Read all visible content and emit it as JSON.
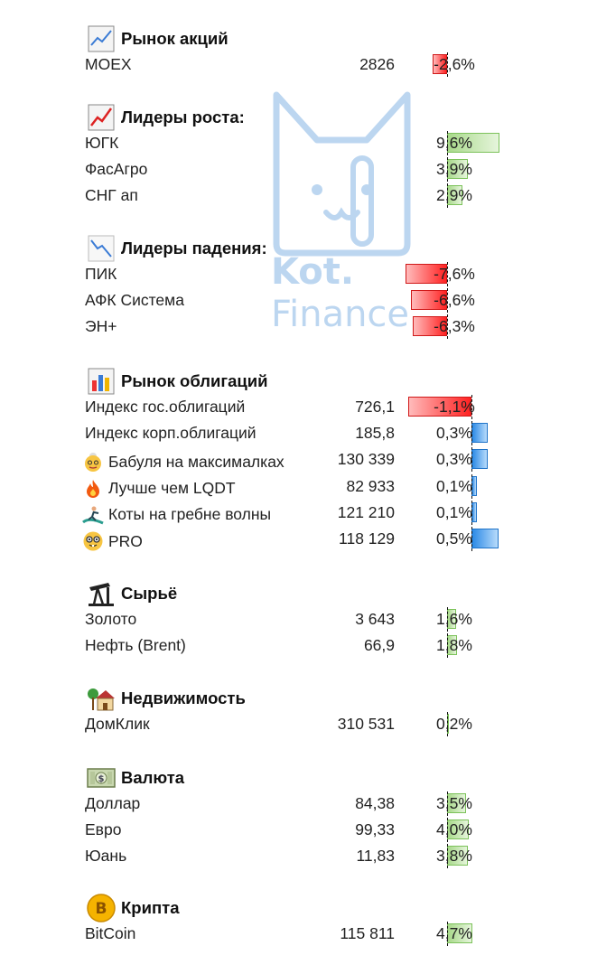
{
  "watermark": {
    "line1": "Kot.",
    "line2": "Finance"
  },
  "sections": [
    {
      "title": "Рынок акций",
      "icon": "chart-up-icon",
      "rows": [
        {
          "name": "MOEX",
          "value": "2826",
          "pct": "-2,6%",
          "change": -2.6
        }
      ]
    },
    {
      "title": "Лидеры роста:",
      "icon": "chart-up-red-icon",
      "rows": [
        {
          "name": "ЮГК",
          "value": "",
          "pct": "9,6%",
          "change": 9.6
        },
        {
          "name": "ФасАгро",
          "value": "",
          "pct": "3,9%",
          "change": 3.9
        },
        {
          "name": "СНГ ап",
          "value": "",
          "pct": "2,9%",
          "change": 2.9
        }
      ]
    },
    {
      "title": "Лидеры падения:",
      "icon": "chart-down-icon",
      "rows": [
        {
          "name": "ПИК",
          "value": "",
          "pct": "-7,6%",
          "change": -7.6
        },
        {
          "name": "АФК Система",
          "value": "",
          "pct": "-6,6%",
          "change": -6.6
        },
        {
          "name": "ЭН+",
          "value": "",
          "pct": "-6,3%",
          "change": -6.3
        }
      ]
    },
    {
      "title": "Рынок облигаций",
      "icon": "bar-chart-icon",
      "rows": [
        {
          "name": "Индекс гос.облигаций",
          "value": "726,1",
          "pct": "-1,1%",
          "change": -1.1,
          "kind": "gov"
        },
        {
          "name": "Индекс корп.облигаций",
          "value": "185,8",
          "pct": "0,3%",
          "change": 0.3,
          "kind": "bond"
        },
        {
          "name": "Бабуля на максималках",
          "value": "130 339",
          "pct": "0,3%",
          "change": 0.3,
          "kind": "bond",
          "emoji": "granny-icon"
        },
        {
          "name": "Лучше чем LQDT",
          "value": "82 933",
          "pct": "0,1%",
          "change": 0.1,
          "kind": "bond",
          "emoji": "fire-icon"
        },
        {
          "name": "Коты на гребне волны",
          "value": "121 210",
          "pct": "0,1%",
          "change": 0.1,
          "kind": "bond",
          "emoji": "surfer-icon"
        },
        {
          "name": "PRO",
          "value": "118 129",
          "pct": "0,5%",
          "change": 0.5,
          "kind": "bond",
          "emoji": "nerd-face-icon"
        }
      ]
    },
    {
      "title": "Сырьё",
      "icon": "oil-pump-icon",
      "rows": [
        {
          "name": "Золото",
          "value": "3 643",
          "pct": "1,6%",
          "change": 1.6
        },
        {
          "name": "Нефть (Brent)",
          "value": "66,9",
          "pct": "1,8%",
          "change": 1.8
        }
      ]
    },
    {
      "title": "Недвижимость",
      "icon": "house-icon",
      "rows": [
        {
          "name": "ДомКлик",
          "value": "310 531",
          "pct": "0,2%",
          "change": 0.2
        }
      ]
    },
    {
      "title": "Валюта",
      "icon": "banknote-icon",
      "rows": [
        {
          "name": "Доллар",
          "value": "84,38",
          "pct": "3,5%",
          "change": 3.5
        },
        {
          "name": "Евро",
          "value": "99,33",
          "pct": "4,0%",
          "change": 4.0
        },
        {
          "name": "Юань",
          "value": "11,83",
          "pct": "3,8%",
          "change": 3.8
        }
      ]
    },
    {
      "title": "Крипта",
      "icon": "bitcoin-icon",
      "rows": [
        {
          "name": "BitCoin",
          "value": "115 811",
          "pct": "4,7%",
          "change": 4.7
        }
      ]
    }
  ]
}
